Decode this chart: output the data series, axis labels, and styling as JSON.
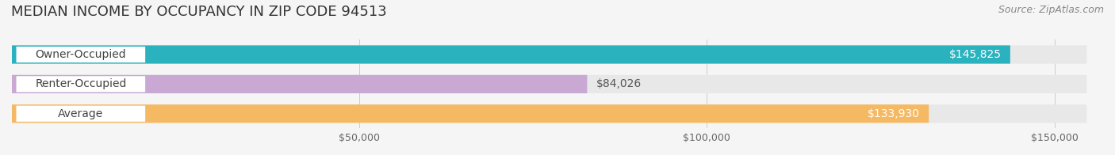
{
  "title": "MEDIAN INCOME BY OCCUPANCY IN ZIP CODE 94513",
  "source": "Source: ZipAtlas.com",
  "categories": [
    "Owner-Occupied",
    "Renter-Occupied",
    "Average"
  ],
  "values": [
    145825,
    84026,
    133930
  ],
  "bar_colors": [
    "#2ab3bf",
    "#c9a8d4",
    "#f5b963"
  ],
  "label_colors": [
    "#ffffff",
    "#555555",
    "#ffffff"
  ],
  "value_labels": [
    "$145,825",
    "$84,026",
    "$133,930"
  ],
  "x_ticks": [
    0,
    50000,
    100000,
    150000
  ],
  "x_tick_labels": [
    "",
    "$50,000",
    "$100,000",
    "$150,000"
  ],
  "xlim": [
    0,
    157000
  ],
  "background_color": "#f5f5f5",
  "bar_background_color": "#e8e8e8",
  "title_fontsize": 13,
  "source_fontsize": 9,
  "label_fontsize": 10,
  "value_fontsize": 10
}
